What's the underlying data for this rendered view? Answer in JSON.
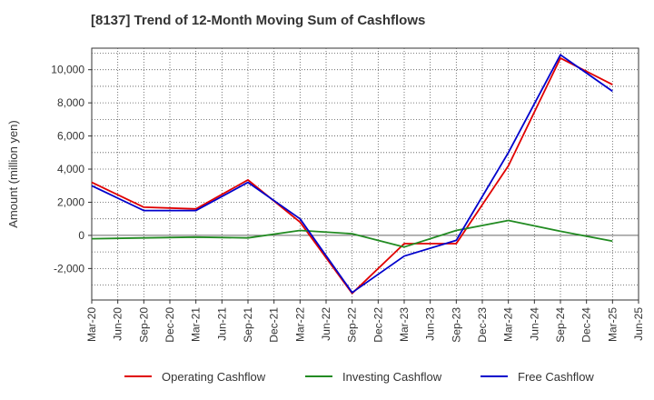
{
  "chart_data": {
    "type": "line",
    "title": "[8137]  Trend of 12-Month Moving Sum of Cashflows",
    "xlabel": "",
    "ylabel": "Amount (million yen)",
    "x": [
      "Mar-20",
      "Sep-20",
      "Mar-21",
      "Sep-21",
      "Mar-22",
      "Sep-22",
      "Mar-23",
      "Sep-23",
      "Mar-24",
      "Sep-24",
      "Mar-25"
    ],
    "x_ticks": [
      "Mar-20",
      "Jun-20",
      "Sep-20",
      "Dec-20",
      "Mar-21",
      "Jun-21",
      "Sep-21",
      "Dec-21",
      "Mar-22",
      "Jun-22",
      "Sep-22",
      "Dec-22",
      "Mar-23",
      "Jun-23",
      "Sep-23",
      "Dec-23",
      "Mar-24",
      "Jun-24",
      "Sep-24",
      "Dec-24",
      "Mar-25",
      "Jun-25"
    ],
    "y_ticks": [
      -2000,
      0,
      2000,
      4000,
      6000,
      8000,
      10000
    ],
    "y_tick_labels": [
      "-2,000",
      "0",
      "2,000",
      "4,000",
      "6,000",
      "8,000",
      "10,000"
    ],
    "ylim": [
      -3900,
      11300
    ],
    "grid": true,
    "legend_position": "bottom",
    "series": [
      {
        "name": "Operating Cashflow",
        "color": "#e00000",
        "values": [
          3200,
          1700,
          1600,
          3350,
          800,
          -3500,
          -500,
          -500,
          4200,
          10700,
          9100
        ]
      },
      {
        "name": "Investing Cashflow",
        "color": "#228b22",
        "values": [
          -200,
          -150,
          -100,
          -150,
          300,
          100,
          -700,
          300,
          900,
          250,
          -350
        ]
      },
      {
        "name": "Free Cashflow",
        "color": "#0000cc",
        "values": [
          3000,
          1500,
          1500,
          3200,
          1000,
          -3450,
          -1250,
          -300,
          5000,
          10900,
          8700
        ]
      }
    ]
  }
}
